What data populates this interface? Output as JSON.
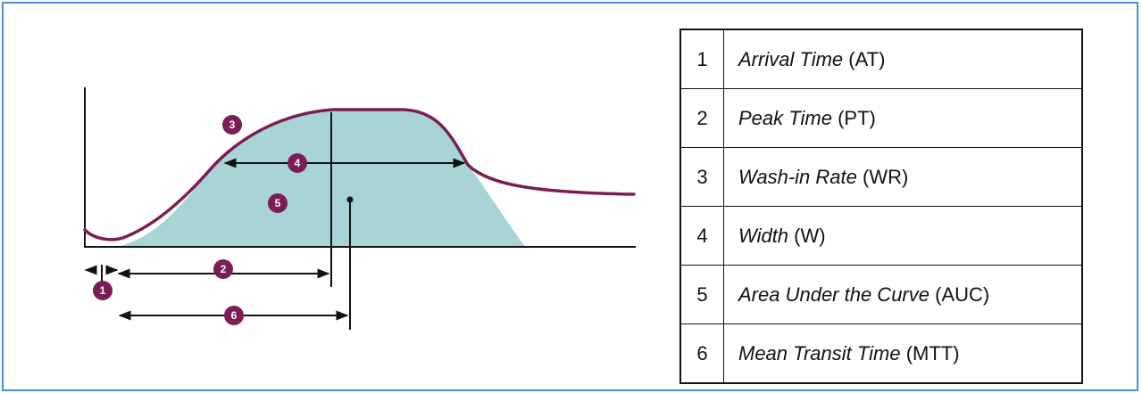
{
  "colors": {
    "frame": "#4a8fd0",
    "curve": "#7a1e55",
    "fill": "#a8d4d6",
    "badge": "#7a1e55",
    "ink": "#111111"
  },
  "badges": [
    "1",
    "2",
    "3",
    "4",
    "5",
    "6"
  ],
  "legend": [
    {
      "num": "1",
      "term": "Arrival Time",
      "abbr": "(AT)"
    },
    {
      "num": "2",
      "term": "Peak Time",
      "abbr": "(PT)"
    },
    {
      "num": "3",
      "term": "Wash-in Rate",
      "abbr": "(WR)"
    },
    {
      "num": "4",
      "term": "Width",
      "abbr": "(W)"
    },
    {
      "num": "5",
      "term": "Area Under the Curve",
      "abbr": "(AUC)"
    },
    {
      "num": "6",
      "term": "Mean Transit Time",
      "abbr": "(MTT)"
    }
  ]
}
